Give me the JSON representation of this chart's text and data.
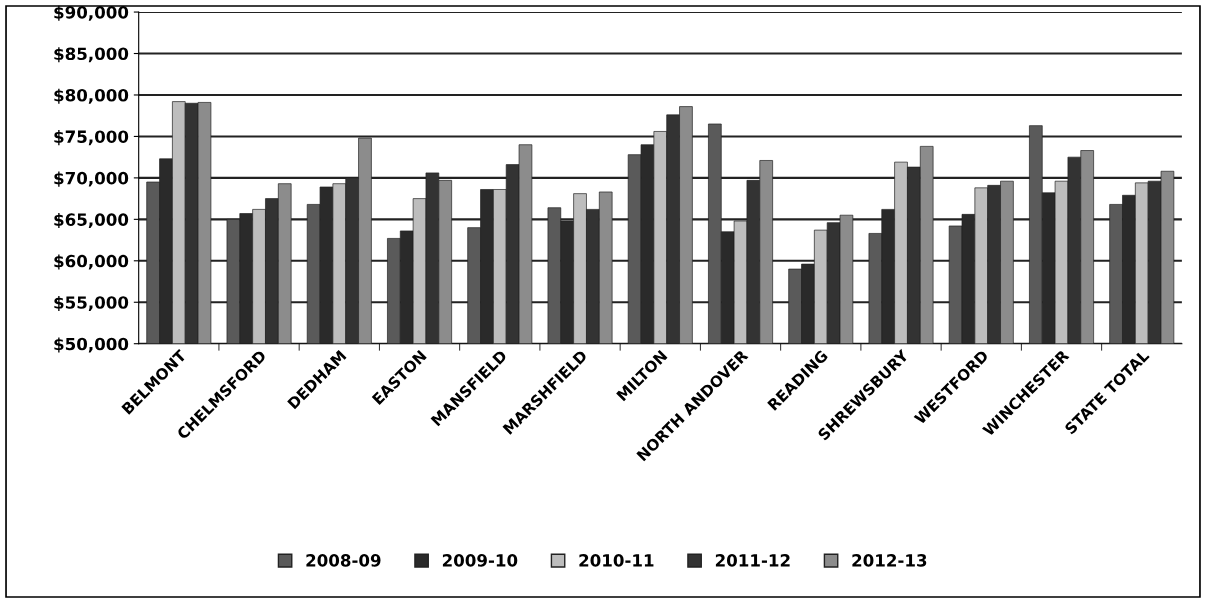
{
  "chart_data": {
    "type": "bar",
    "categories": [
      "BELMONT",
      "CHELMSFORD",
      "DEDHAM",
      "EASTON",
      "MANSFIELD",
      "MARSHFIELD",
      "MILTON",
      "NORTH ANDOVER",
      "READING",
      "SHREWSBURY",
      "WESTFORD",
      "WINCHESTER",
      "STATE TOTAL"
    ],
    "series": [
      {
        "name": "2008-09",
        "color": "#5a5a5a",
        "values": [
          69500,
          65000,
          66800,
          62700,
          64000,
          66400,
          72800,
          76500,
          59000,
          63300,
          64200,
          76300,
          66800
        ]
      },
      {
        "name": "2009-10",
        "color": "#2a2a2a",
        "values": [
          72300,
          65700,
          68900,
          63600,
          68600,
          64800,
          74000,
          63500,
          59600,
          66200,
          65600,
          68200,
          67900
        ]
      },
      {
        "name": "2010-11",
        "color": "#bdbdbd",
        "values": [
          79200,
          66200,
          69300,
          67500,
          68600,
          68100,
          75600,
          64800,
          63700,
          71900,
          68800,
          69600,
          69400
        ]
      },
      {
        "name": "2011-12",
        "color": "#333333",
        "values": [
          79000,
          67500,
          70000,
          70600,
          71600,
          66200,
          77600,
          69700,
          64600,
          71300,
          69100,
          72500,
          69600
        ]
      },
      {
        "name": "2012-13",
        "color": "#8c8c8c",
        "values": [
          79100,
          69300,
          74800,
          69700,
          74000,
          68300,
          78600,
          72100,
          65500,
          73800,
          69600,
          73300,
          70800
        ]
      }
    ],
    "ylim": [
      50000,
      90000
    ],
    "yticks": [
      {
        "value": 50000,
        "label": "$50,000"
      },
      {
        "value": 55000,
        "label": "$55,000"
      },
      {
        "value": 60000,
        "label": "$60,000"
      },
      {
        "value": 65000,
        "label": "$65,000"
      },
      {
        "value": 70000,
        "label": "$70,000"
      },
      {
        "value": 75000,
        "label": "$75,000"
      },
      {
        "value": 80000,
        "label": "$80,000"
      },
      {
        "value": 85000,
        "label": "$85,000"
      },
      {
        "value": 90000,
        "label": "$90,000"
      }
    ],
    "grid": "y",
    "legend": "bottom"
  }
}
